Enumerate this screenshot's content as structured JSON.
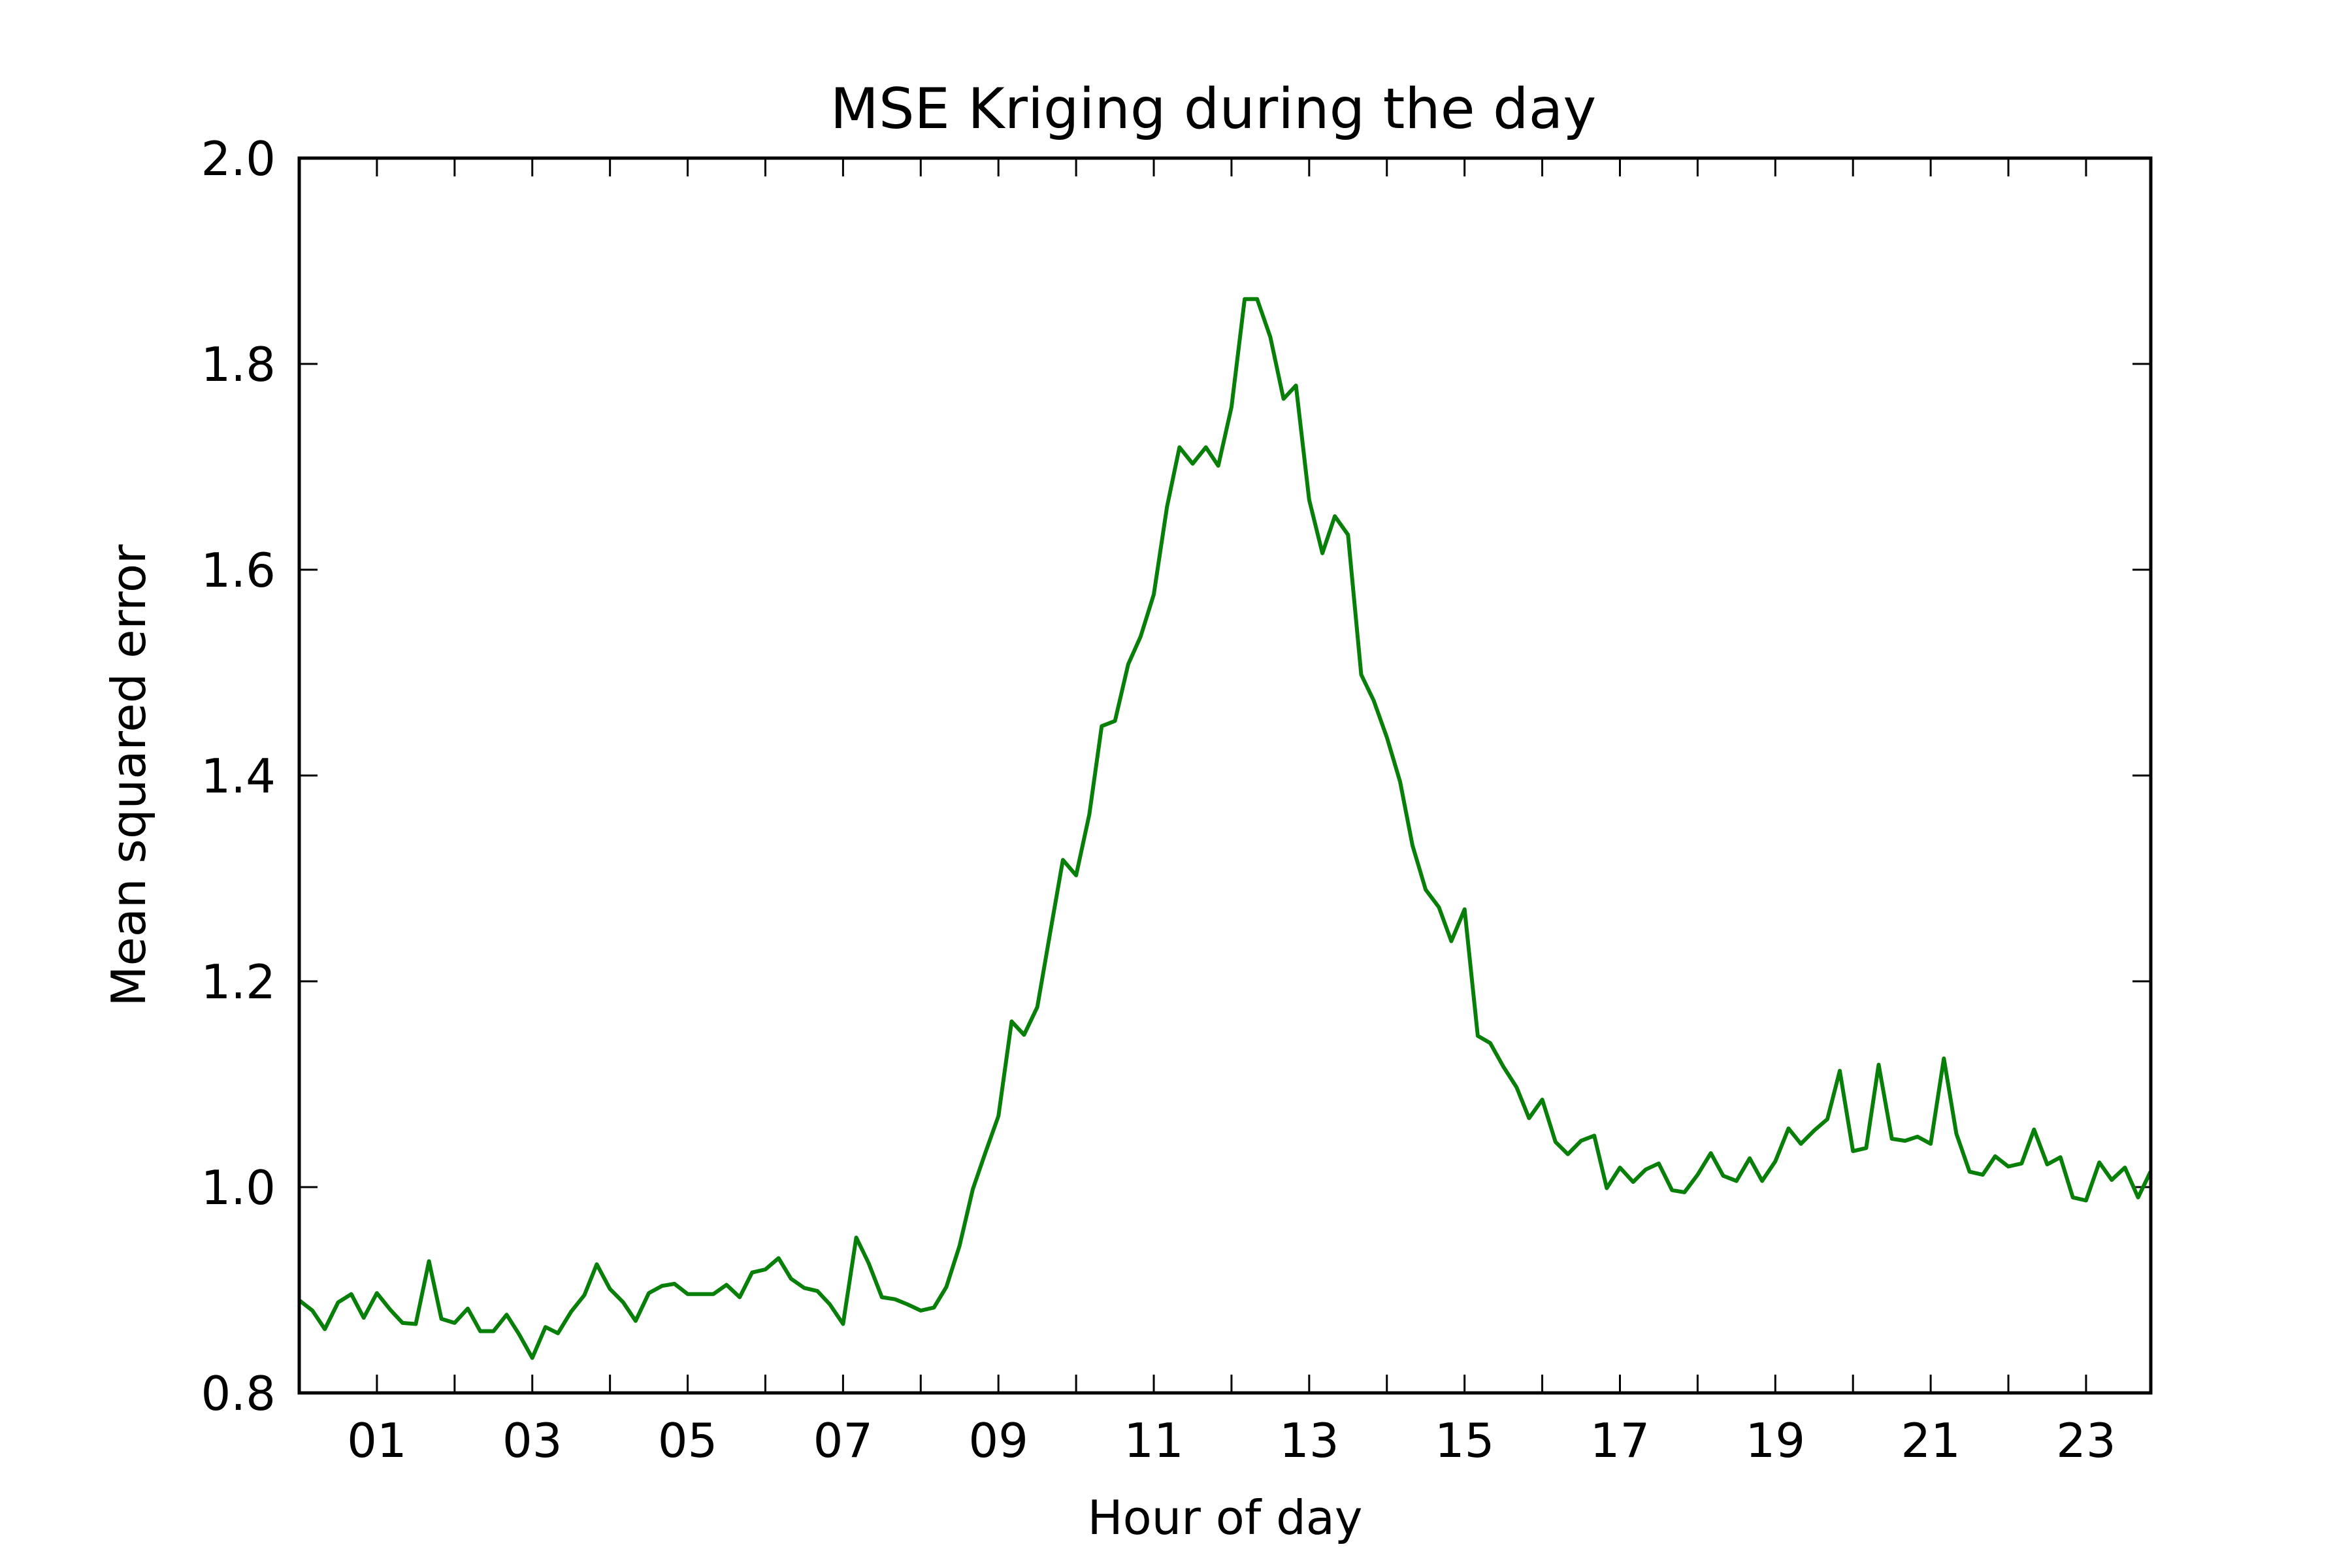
{
  "chart_data": {
    "type": "line",
    "title": "MSE Kriging during the day",
    "xlabel": "Hour of day",
    "ylabel": "Mean squared error",
    "xlim": [
      0,
      23.833
    ],
    "ylim": [
      0.8,
      2.0
    ],
    "grid": false,
    "x_ticks": [
      {
        "value": 1,
        "label": "01"
      },
      {
        "value": 3,
        "label": "03"
      },
      {
        "value": 5,
        "label": "05"
      },
      {
        "value": 7,
        "label": "07"
      },
      {
        "value": 9,
        "label": "09"
      },
      {
        "value": 11,
        "label": "11"
      },
      {
        "value": 13,
        "label": "13"
      },
      {
        "value": 15,
        "label": "15"
      },
      {
        "value": 17,
        "label": "17"
      },
      {
        "value": 19,
        "label": "19"
      },
      {
        "value": 21,
        "label": "21"
      },
      {
        "value": 23,
        "label": "23"
      }
    ],
    "x_minor_ticks": [
      0,
      2,
      4,
      6,
      8,
      10,
      12,
      14,
      16,
      18,
      20,
      22
    ],
    "y_ticks": [
      {
        "value": 0.8,
        "label": "0.8"
      },
      {
        "value": 1.0,
        "label": "1.0"
      },
      {
        "value": 1.2,
        "label": "1.2"
      },
      {
        "value": 1.4,
        "label": "1.4"
      },
      {
        "value": 1.6,
        "label": "1.6"
      },
      {
        "value": 1.8,
        "label": "1.8"
      },
      {
        "value": 2.0,
        "label": "2.0"
      }
    ],
    "series": [
      {
        "color": "#087f08",
        "x": [
          0.0,
          0.17,
          0.33,
          0.5,
          0.67,
          0.83,
          1.0,
          1.17,
          1.33,
          1.5,
          1.67,
          1.83,
          2.0,
          2.17,
          2.33,
          2.5,
          2.67,
          2.83,
          3.0,
          3.17,
          3.33,
          3.5,
          3.67,
          3.83,
          4.0,
          4.17,
          4.33,
          4.5,
          4.67,
          4.83,
          5.0,
          5.17,
          5.33,
          5.5,
          5.67,
          5.83,
          6.0,
          6.17,
          6.33,
          6.5,
          6.67,
          6.83,
          7.0,
          7.17,
          7.33,
          7.5,
          7.67,
          7.83,
          8.0,
          8.17,
          8.33,
          8.5,
          8.67,
          8.83,
          9.0,
          9.17,
          9.33,
          9.5,
          9.67,
          9.83,
          10.0,
          10.17,
          10.33,
          10.5,
          10.67,
          10.83,
          11.0,
          11.17,
          11.33,
          11.5,
          11.67,
          11.83,
          12.0,
          12.17,
          12.33,
          12.5,
          12.67,
          12.83,
          13.0,
          13.17,
          13.33,
          13.5,
          13.67,
          13.83,
          14.0,
          14.17,
          14.33,
          14.5,
          14.67,
          14.83,
          15.0,
          15.17,
          15.33,
          15.5,
          15.67,
          15.83,
          16.0,
          16.17,
          16.33,
          16.5,
          16.67,
          16.83,
          17.0,
          17.17,
          17.33,
          17.5,
          17.67,
          17.83,
          18.0,
          18.17,
          18.33,
          18.5,
          18.67,
          18.83,
          19.0,
          19.17,
          19.33,
          19.5,
          19.67,
          19.83,
          20.0,
          20.17,
          20.33,
          20.5,
          20.67,
          20.83,
          21.0,
          21.17,
          21.33,
          21.5,
          21.67,
          21.83,
          22.0,
          22.17,
          22.33,
          22.5,
          22.67,
          22.83,
          23.0,
          23.17,
          23.33,
          23.5,
          23.67,
          23.83
        ],
        "y": [
          0.89,
          0.88,
          0.862,
          0.888,
          0.896,
          0.873,
          0.897,
          0.881,
          0.868,
          0.867,
          0.928,
          0.872,
          0.868,
          0.882,
          0.86,
          0.86,
          0.876,
          0.857,
          0.834,
          0.864,
          0.858,
          0.879,
          0.895,
          0.925,
          0.901,
          0.888,
          0.87,
          0.897,
          0.904,
          0.906,
          0.896,
          0.896,
          0.896,
          0.905,
          0.893,
          0.917,
          0.92,
          0.931,
          0.911,
          0.902,
          0.899,
          0.886,
          0.867,
          0.951,
          0.926,
          0.893,
          0.891,
          0.886,
          0.88,
          0.883,
          0.903,
          0.943,
          0.998,
          1.033,
          1.069,
          1.161,
          1.148,
          1.175,
          1.249,
          1.318,
          1.303,
          1.362,
          1.448,
          1.453,
          1.508,
          1.535,
          1.576,
          1.661,
          1.719,
          1.703,
          1.719,
          1.701,
          1.758,
          1.863,
          1.863,
          1.826,
          1.766,
          1.779,
          1.668,
          1.616,
          1.652,
          1.634,
          1.498,
          1.473,
          1.437,
          1.394,
          1.332,
          1.289,
          1.272,
          1.239,
          1.27,
          1.147,
          1.14,
          1.117,
          1.097,
          1.067,
          1.085,
          1.044,
          1.032,
          1.045,
          1.05,
          0.999,
          1.019,
          1.005,
          1.017,
          1.023,
          0.997,
          0.995,
          1.012,
          1.033,
          1.011,
          1.006,
          1.028,
          1.006,
          1.025,
          1.057,
          1.042,
          1.055,
          1.066,
          1.113,
          1.035,
          1.038,
          1.119,
          1.047,
          1.045,
          1.049,
          1.042,
          1.125,
          1.052,
          1.015,
          1.012,
          1.03,
          1.02,
          1.023,
          1.056,
          1.022,
          1.029,
          0.99,
          0.987,
          1.024,
          1.007,
          1.019,
          0.99,
          1.015
        ]
      }
    ]
  }
}
